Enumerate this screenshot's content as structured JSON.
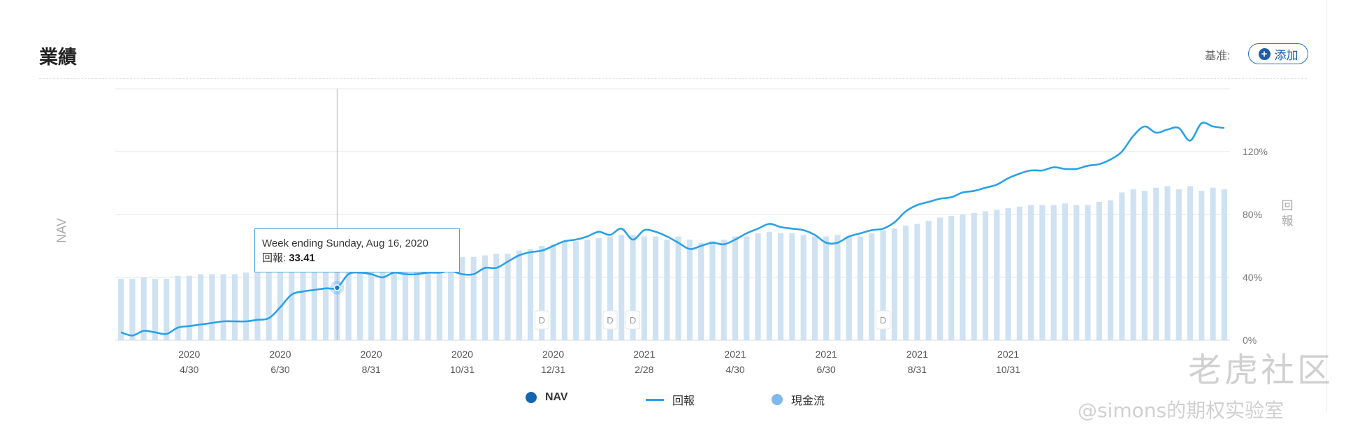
{
  "header": {
    "title": "業績",
    "benchmark_label": "基准:",
    "add_label": "添加"
  },
  "tooltip": {
    "title": "Week ending Sunday, Aug 16, 2020",
    "label": "回報:",
    "value": "33.41"
  },
  "legend": [
    {
      "label": "NAV",
      "color": "#1565b0",
      "kind": "dot"
    },
    {
      "label": "回報",
      "color": "#2aa1e8",
      "kind": "line"
    },
    {
      "label": "現金流",
      "color": "#7fb8ea",
      "kind": "dot"
    }
  ],
  "watermark": {
    "brand": "老虎社区",
    "handle": "@simons的期权实验室"
  },
  "chart_data": {
    "type": "bar+line",
    "y_left_label": "NAV",
    "y_right_label": "回報",
    "y_right_ticks": [
      "0%",
      "40%",
      "80%",
      "120%"
    ],
    "ylim_right": [
      0,
      160
    ],
    "grid": true,
    "legend_position": "bottom",
    "x_tick_labels": [
      {
        "year": "2020",
        "date": "4/30",
        "week": 6
      },
      {
        "year": "2020",
        "date": "6/30",
        "week": 14
      },
      {
        "year": "2020",
        "date": "8/31",
        "week": 22
      },
      {
        "year": "2020",
        "date": "10/31",
        "week": 30
      },
      {
        "year": "2020",
        "date": "12/31",
        "week": 38
      },
      {
        "year": "2021",
        "date": "2/28",
        "week": 46
      },
      {
        "year": "2021",
        "date": "4/30",
        "week": 54
      },
      {
        "year": "2021",
        "date": "6/30",
        "week": 62
      },
      {
        "year": "2021",
        "date": "8/31",
        "week": 70
      },
      {
        "year": "2021",
        "date": "10/31",
        "week": 78
      }
    ],
    "series": [
      {
        "name": "NAV",
        "kind": "bar",
        "color": "#cfe2f3",
        "values": [
          39,
          39,
          40,
          39,
          39,
          41,
          41,
          42,
          42,
          42,
          42,
          43,
          43,
          44,
          44,
          45,
          44,
          45,
          45,
          45,
          44,
          45,
          45,
          46,
          46,
          46,
          47,
          48,
          50,
          52,
          53,
          53,
          54,
          55,
          55,
          57,
          58,
          60,
          61,
          63,
          63,
          64,
          65,
          66,
          67,
          67,
          66,
          66,
          64,
          66,
          64,
          62,
          63,
          64,
          66,
          66,
          68,
          69,
          68,
          68,
          67,
          66,
          66,
          67,
          66,
          66,
          68,
          70,
          71,
          73,
          74,
          76,
          78,
          79,
          80,
          81,
          82,
          83,
          84,
          85,
          86,
          86,
          86,
          87,
          86,
          86,
          88,
          89,
          94,
          96,
          95,
          97,
          98,
          96,
          98,
          95,
          97,
          96
        ]
      },
      {
        "name": "回報",
        "kind": "line",
        "color": "#2aa1e8",
        "values": [
          5,
          3,
          6,
          5,
          4,
          8,
          9,
          10,
          11,
          12,
          12,
          12,
          13,
          14,
          21,
          29,
          31,
          32,
          33,
          33.41,
          42,
          43,
          42,
          40,
          43,
          42,
          42,
          43,
          43,
          44,
          42,
          42,
          46,
          46,
          50,
          54,
          56,
          57,
          60,
          63,
          64,
          66,
          69,
          67,
          71,
          64,
          70,
          69,
          66,
          62,
          58,
          60,
          62,
          61,
          64,
          68,
          71,
          74,
          72,
          71,
          70,
          67,
          62,
          62,
          66,
          68,
          70,
          71,
          75,
          82,
          86,
          88,
          90,
          91,
          94,
          95,
          97,
          99,
          103,
          106,
          108,
          108,
          110,
          109,
          109,
          111,
          112,
          115,
          120,
          130,
          136,
          132,
          134,
          135,
          127,
          138,
          136,
          135
        ]
      }
    ],
    "annotations": [
      {
        "text": "D",
        "week": 37
      },
      {
        "text": "D",
        "week": 43
      },
      {
        "text": "D",
        "week": 45
      },
      {
        "text": "D",
        "week": 67
      }
    ],
    "crosshair_week": 19
  }
}
